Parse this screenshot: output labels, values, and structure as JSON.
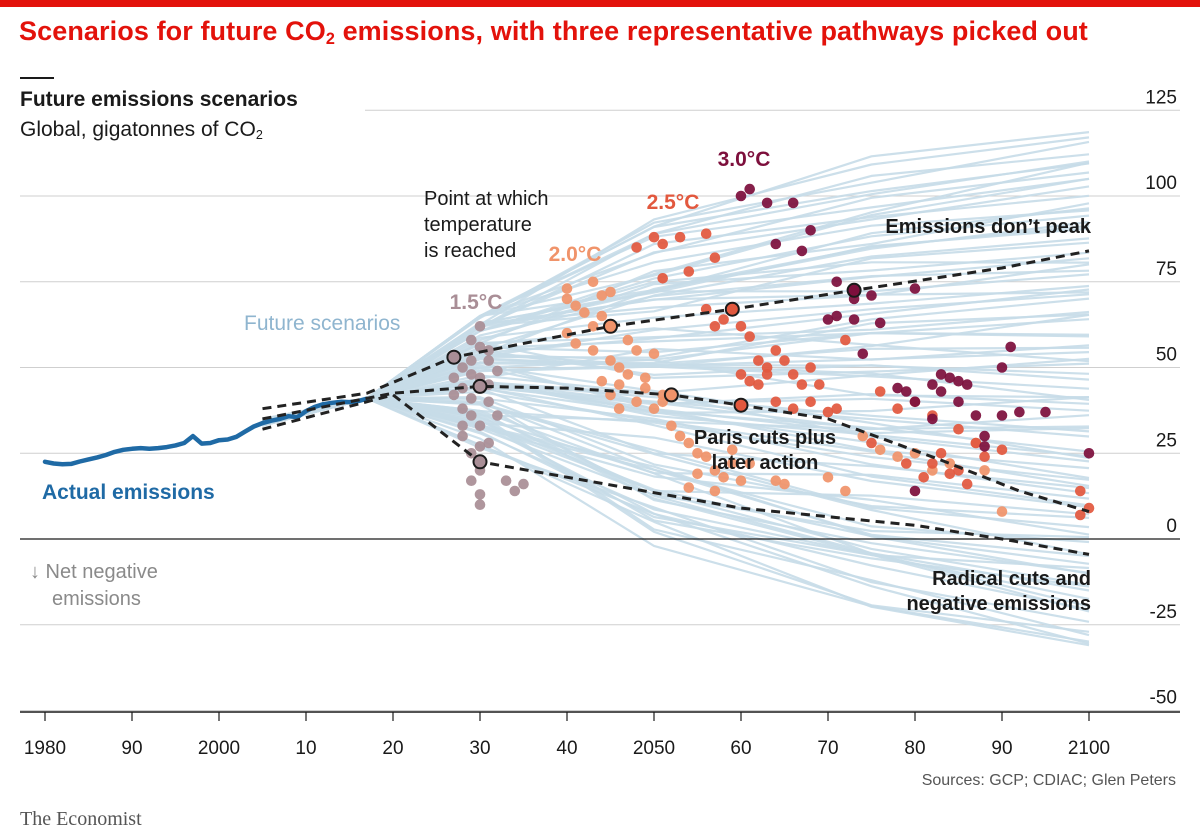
{
  "header": {
    "headline_pre": "Scenarios for future CO",
    "headline_sub": "2",
    "headline_post": " emissions, with three representative pathways picked out",
    "title": "Future emissions scenarios",
    "subtitle_pre": "Global, gigatonnes of CO",
    "subtitle_sub": "2"
  },
  "footer": {
    "sources": "Sources: GCP; CDIAC; Glen Peters",
    "brand": "The Economist"
  },
  "colors": {
    "headline": "#e3120b",
    "actual": "#1f6aa5",
    "scenario": "#c6dbe8",
    "t15": "#a98e96",
    "t20": "#f0936a",
    "t25": "#e2583e",
    "t30": "#7d0f3c",
    "pathway": "#222222",
    "grid": "#cfcfcf"
  },
  "chart_data": {
    "type": "line",
    "xlabel": "",
    "ylabel": "",
    "xlim": [
      1976,
      2102
    ],
    "ylim": [
      -50,
      125
    ],
    "x_ticks": [
      1980,
      1990,
      2000,
      2010,
      2020,
      2030,
      2040,
      2050,
      2060,
      2070,
      2080,
      2090,
      2100
    ],
    "x_tick_labels": [
      "1980",
      "90",
      "2000",
      "10",
      "20",
      "30",
      "40",
      "2050",
      "60",
      "70",
      "80",
      "90",
      "2100"
    ],
    "y_ticks": [
      -50,
      -25,
      0,
      25,
      50,
      75,
      100,
      125
    ],
    "y_tick_labels": [
      "-50",
      "-25",
      "0",
      "25",
      "50",
      "75",
      "100",
      "125"
    ],
    "annotations": {
      "actual": "Actual emissions",
      "future": "Future scenarios",
      "point_line1": "Point at which",
      "point_line2": "temperature",
      "point_line3": "is reached",
      "no_peak": "Emissions don’t peak",
      "paris_line1": "Paris cuts plus",
      "paris_line2": "later action",
      "radical_line1": "Radical cuts and",
      "radical_line2": "negative emissions",
      "neg_line1": "↓ Net negative",
      "neg_line2": "emissions"
    },
    "temperature_labels": [
      {
        "label": "1.5°C",
        "key": "t15"
      },
      {
        "label": "2.0°C",
        "key": "t20"
      },
      {
        "label": "2.5°C",
        "key": "t25"
      },
      {
        "label": "3.0°C",
        "key": "t30"
      }
    ],
    "actual_emissions": {
      "name": "Actual emissions",
      "x": [
        1980,
        1981,
        1982,
        1983,
        1984,
        1985,
        1986,
        1987,
        1988,
        1989,
        1990,
        1991,
        1992,
        1993,
        1994,
        1995,
        1996,
        1997,
        1998,
        1999,
        2000,
        2001,
        2002,
        2003,
        2004,
        2005,
        2006,
        2007,
        2008,
        2009,
        2010,
        2011,
        2012,
        2013,
        2014,
        2015,
        2016,
        2017
      ],
      "y": [
        22.5,
        22.0,
        21.8,
        21.9,
        22.6,
        23.2,
        23.8,
        24.5,
        25.4,
        26.0,
        26.3,
        26.5,
        26.3,
        26.5,
        26.8,
        27.3,
        28.0,
        30.0,
        27.8,
        28.0,
        28.8,
        29.0,
        29.8,
        31.3,
        32.8,
        33.8,
        34.5,
        35.0,
        35.8,
        35.5,
        37.3,
        38.5,
        39.3,
        39.7,
        40.0,
        39.9,
        40.2,
        40.9
      ]
    },
    "pathways": [
      {
        "name": "Emissions don’t peak",
        "x": [
          2005,
          2017,
          2027,
          2045,
          2059,
          2073,
          2090,
          2100
        ],
        "y": [
          38,
          42.5,
          53,
          62,
          67,
          72.5,
          79,
          84
        ]
      },
      {
        "name": "Paris cuts plus later action",
        "x": [
          2005,
          2020,
          2030,
          2040,
          2052,
          2060,
          2070,
          2083,
          2092,
          2100
        ],
        "y": [
          35,
          42.5,
          44.5,
          44,
          42,
          39,
          35,
          23,
          14,
          8
        ]
      },
      {
        "name": "Radical cuts and negative emissions",
        "x": [
          2005,
          2020,
          2030,
          2060,
          2080,
          2090,
          2100
        ],
        "y": [
          32,
          42,
          22.5,
          9,
          4,
          0,
          -4.5
        ]
      }
    ],
    "pathway_markers": [
      {
        "x": 2027,
        "y": 53,
        "temp": "t15"
      },
      {
        "x": 2030,
        "y": 44.5,
        "temp": "t15"
      },
      {
        "x": 2030,
        "y": 22.5,
        "temp": "t15"
      },
      {
        "x": 2045,
        "y": 62,
        "temp": "t20"
      },
      {
        "x": 2052,
        "y": 42,
        "temp": "t20"
      },
      {
        "x": 2059,
        "y": 67,
        "temp": "t25"
      },
      {
        "x": 2060,
        "y": 39,
        "temp": "t25"
      },
      {
        "x": 2073,
        "y": 72.5,
        "temp": "t30"
      }
    ],
    "temperature_points": {
      "t15": [
        [
          2030,
          62
        ],
        [
          2030,
          56
        ],
        [
          2029,
          58
        ],
        [
          2028,
          50
        ],
        [
          2029,
          48
        ],
        [
          2030,
          47
        ],
        [
          2031,
          52
        ],
        [
          2028,
          44
        ],
        [
          2029,
          41
        ],
        [
          2031,
          40
        ],
        [
          2029,
          36
        ],
        [
          2030,
          33
        ],
        [
          2028,
          30
        ],
        [
          2031,
          28
        ],
        [
          2029,
          25
        ],
        [
          2030,
          20
        ],
        [
          2029,
          17
        ],
        [
          2030,
          13
        ],
        [
          2030,
          10
        ],
        [
          2028,
          38
        ],
        [
          2031,
          45
        ],
        [
          2032,
          49
        ],
        [
          2027,
          47
        ],
        [
          2028,
          33
        ],
        [
          2030,
          27
        ],
        [
          2032,
          36
        ],
        [
          2033,
          17
        ],
        [
          2034,
          14
        ],
        [
          2035,
          16
        ],
        [
          2029,
          52
        ],
        [
          2031,
          55
        ],
        [
          2027,
          42
        ]
      ],
      "t20": [
        [
          2040,
          73
        ],
        [
          2040,
          70
        ],
        [
          2041,
          68
        ],
        [
          2042,
          66
        ],
        [
          2043,
          75
        ],
        [
          2044,
          71
        ],
        [
          2045,
          72
        ],
        [
          2044,
          65
        ],
        [
          2040,
          60
        ],
        [
          2041,
          57
        ],
        [
          2043,
          55
        ],
        [
          2045,
          52
        ],
        [
          2046,
          50
        ],
        [
          2047,
          58
        ],
        [
          2048,
          55
        ],
        [
          2050,
          54
        ],
        [
          2047,
          48
        ],
        [
          2044,
          46
        ],
        [
          2045,
          42
        ],
        [
          2046,
          38
        ],
        [
          2048,
          40
        ],
        [
          2050,
          38
        ],
        [
          2049,
          44
        ],
        [
          2051,
          40
        ],
        [
          2052,
          33
        ],
        [
          2053,
          30
        ],
        [
          2054,
          28
        ],
        [
          2055,
          25
        ],
        [
          2056,
          24
        ],
        [
          2057,
          20
        ],
        [
          2058,
          18
        ],
        [
          2055,
          19
        ],
        [
          2057,
          14
        ],
        [
          2054,
          15
        ],
        [
          2059,
          22
        ],
        [
          2060,
          17
        ],
        [
          2064,
          17
        ],
        [
          2065,
          16
        ],
        [
          2070,
          18
        ],
        [
          2072,
          14
        ],
        [
          2074,
          30
        ],
        [
          2076,
          26
        ],
        [
          2078,
          24
        ],
        [
          2080,
          25
        ],
        [
          2082,
          20
        ],
        [
          2084,
          22
        ],
        [
          2087,
          28
        ],
        [
          2088,
          20
        ],
        [
          2090,
          8
        ],
        [
          2046,
          45
        ],
        [
          2049,
          47
        ],
        [
          2051,
          42
        ],
        [
          2043,
          62
        ],
        [
          2059,
          26
        ],
        [
          2061,
          22
        ]
      ],
      "t25": [
        [
          2050,
          88
        ],
        [
          2051,
          86
        ],
        [
          2053,
          88
        ],
        [
          2056,
          89
        ],
        [
          2057,
          82
        ],
        [
          2048,
          85
        ],
        [
          2051,
          76
        ],
        [
          2056,
          67
        ],
        [
          2057,
          62
        ],
        [
          2058,
          64
        ],
        [
          2060,
          62
        ],
        [
          2061,
          59
        ],
        [
          2062,
          52
        ],
        [
          2063,
          50
        ],
        [
          2064,
          55
        ],
        [
          2065,
          52
        ],
        [
          2066,
          48
        ],
        [
          2067,
          45
        ],
        [
          2068,
          50
        ],
        [
          2069,
          45
        ],
        [
          2063,
          48
        ],
        [
          2060,
          48
        ],
        [
          2061,
          46
        ],
        [
          2064,
          40
        ],
        [
          2066,
          38
        ],
        [
          2068,
          40
        ],
        [
          2070,
          37
        ],
        [
          2072,
          58
        ],
        [
          2071,
          38
        ],
        [
          2076,
          43
        ],
        [
          2078,
          38
        ],
        [
          2080,
          40
        ],
        [
          2082,
          36
        ],
        [
          2085,
          32
        ],
        [
          2087,
          28
        ],
        [
          2090,
          26
        ],
        [
          2083,
          25
        ],
        [
          2085,
          20
        ],
        [
          2079,
          22
        ],
        [
          2082,
          22
        ],
        [
          2084,
          19
        ],
        [
          2086,
          16
        ],
        [
          2099,
          14
        ],
        [
          2100,
          9
        ],
        [
          2099,
          7
        ],
        [
          2054,
          78
        ],
        [
          2062,
          45
        ],
        [
          2075,
          28
        ],
        [
          2081,
          18
        ],
        [
          2088,
          24
        ]
      ],
      "t30": [
        [
          2060,
          100
        ],
        [
          2061,
          102
        ],
        [
          2063,
          98
        ],
        [
          2066,
          98
        ],
        [
          2068,
          90
        ],
        [
          2064,
          86
        ],
        [
          2067,
          84
        ],
        [
          2071,
          75
        ],
        [
          2073,
          70
        ],
        [
          2075,
          71
        ],
        [
          2070,
          64
        ],
        [
          2073,
          64
        ],
        [
          2076,
          63
        ],
        [
          2074,
          54
        ],
        [
          2080,
          73
        ],
        [
          2078,
          44
        ],
        [
          2079,
          43
        ],
        [
          2080,
          40
        ],
        [
          2082,
          45
        ],
        [
          2083,
          48
        ],
        [
          2084,
          47
        ],
        [
          2085,
          46
        ],
        [
          2086,
          45
        ],
        [
          2083,
          43
        ],
        [
          2085,
          40
        ],
        [
          2087,
          36
        ],
        [
          2088,
          30
        ],
        [
          2090,
          36
        ],
        [
          2092,
          37
        ],
        [
          2088,
          27
        ],
        [
          2090,
          50
        ],
        [
          2091,
          56
        ],
        [
          2082,
          35
        ],
        [
          2095,
          37
        ],
        [
          2100,
          25
        ],
        [
          2080,
          14
        ],
        [
          2071,
          65
        ]
      ]
    }
  }
}
